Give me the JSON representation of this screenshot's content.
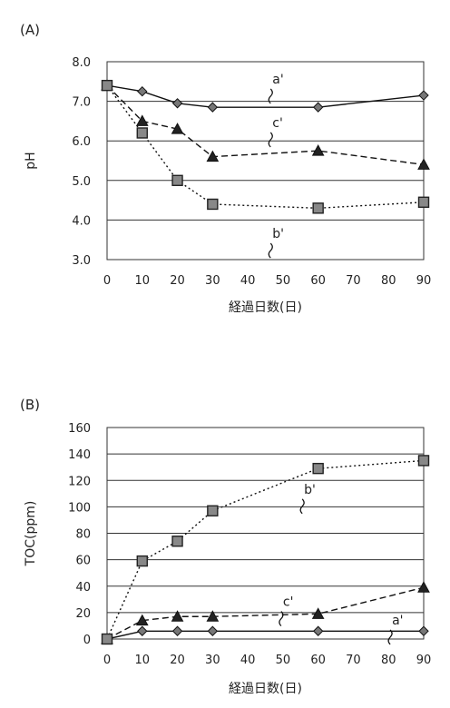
{
  "chart_data": [
    {
      "panel_label": "(A)",
      "type": "line",
      "ylabel": "pH",
      "xlabel": "経過日数(日)",
      "xlim": [
        0,
        90
      ],
      "ylim": [
        3.0,
        8.0
      ],
      "x_ticks": [
        "0",
        "10",
        "20",
        "30",
        "40",
        "50",
        "60",
        "70",
        "80",
        "90"
      ],
      "y_ticks": [
        "3.0",
        "4.0",
        "5.0",
        "6.0",
        "7.0",
        "8.0"
      ],
      "grid": "horizontal",
      "series": [
        {
          "name": "a'",
          "marker": "diamond",
          "dash": "solid",
          "x": [
            0,
            10,
            20,
            30,
            60,
            90
          ],
          "y": [
            7.4,
            7.25,
            6.95,
            6.85,
            6.85,
            7.15
          ]
        },
        {
          "name": "c'",
          "marker": "triangle",
          "dash": "dashed",
          "x": [
            0,
            10,
            20,
            30,
            60,
            90
          ],
          "y": [
            7.4,
            6.5,
            6.3,
            5.6,
            5.75,
            5.4
          ]
        },
        {
          "name": "b'",
          "marker": "square",
          "dash": "dotted",
          "x": [
            0,
            10,
            20,
            30,
            60,
            90
          ],
          "y": [
            7.4,
            6.2,
            5.0,
            4.4,
            4.3,
            4.45
          ]
        }
      ],
      "annotations": [
        {
          "text": "a'",
          "x": 47,
          "y": 7.45
        },
        {
          "text": "c'",
          "x": 47,
          "y": 6.35
        },
        {
          "text": "b'",
          "x": 47,
          "y": 3.55
        }
      ]
    },
    {
      "panel_label": "(B)",
      "type": "line",
      "ylabel": "TOC(ppm)",
      "xlabel": "経過日数(日)",
      "xlim": [
        0,
        90
      ],
      "ylim": [
        0,
        160
      ],
      "x_ticks": [
        "0",
        "10",
        "20",
        "30",
        "40",
        "50",
        "60",
        "70",
        "80",
        "90"
      ],
      "y_ticks": [
        "0",
        "20",
        "40",
        "60",
        "80",
        "100",
        "120",
        "140",
        "160"
      ],
      "grid": "horizontal",
      "series": [
        {
          "name": "a'",
          "marker": "diamond",
          "dash": "solid",
          "x": [
            0,
            10,
            20,
            30,
            60,
            90
          ],
          "y": [
            0,
            6,
            6,
            6,
            6,
            6
          ]
        },
        {
          "name": "c'",
          "marker": "triangle",
          "dash": "dashed",
          "x": [
            0,
            10,
            20,
            30,
            60,
            90
          ],
          "y": [
            0,
            14,
            17,
            17,
            19,
            39
          ]
        },
        {
          "name": "b'",
          "marker": "square",
          "dash": "dotted",
          "x": [
            0,
            10,
            20,
            30,
            60,
            90
          ],
          "y": [
            0,
            59,
            74,
            97,
            129,
            135
          ]
        }
      ],
      "annotations": [
        {
          "text": "b'",
          "x": 56,
          "y": 110
        },
        {
          "text": "c'",
          "x": 50,
          "y": 25
        },
        {
          "text": "a'",
          "x": 81,
          "y": 11
        }
      ]
    }
  ]
}
